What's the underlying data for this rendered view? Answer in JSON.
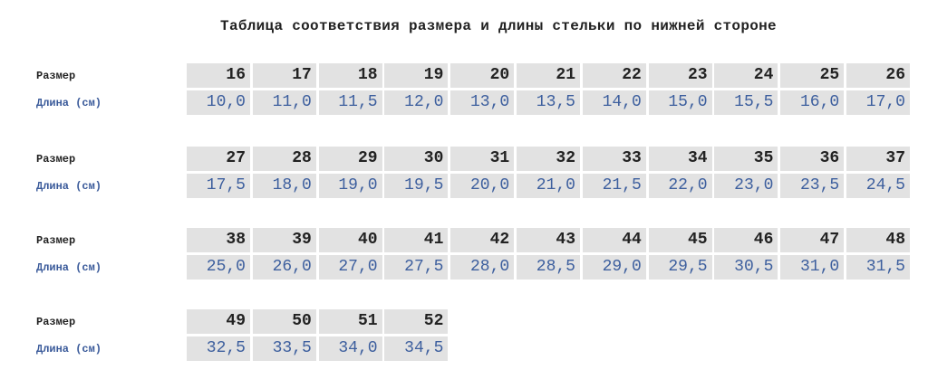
{
  "title": "Таблица соответствия размера и длины стельки по нижней стороне",
  "size_label": "Размер",
  "length_label": "Длина (см)",
  "colors": {
    "cell_bg": "#e2e2e2",
    "length_text": "#3d5f9e",
    "size_text": "#222222"
  },
  "blocks": [
    {
      "sizes": [
        "16",
        "17",
        "18",
        "19",
        "20",
        "21",
        "22",
        "23",
        "24",
        "25",
        "26"
      ],
      "lengths": [
        "10,0",
        "11,0",
        "11,5",
        "12,0",
        "13,0",
        "13,5",
        "14,0",
        "15,0",
        "15,5",
        "16,0",
        "17,0"
      ]
    },
    {
      "sizes": [
        "27",
        "28",
        "29",
        "30",
        "31",
        "32",
        "33",
        "34",
        "35",
        "36",
        "37"
      ],
      "lengths": [
        "17,5",
        "18,0",
        "19,0",
        "19,5",
        "20,0",
        "21,0",
        "21,5",
        "22,0",
        "23,0",
        "23,5",
        "24,5"
      ]
    },
    {
      "sizes": [
        "38",
        "39",
        "40",
        "41",
        "42",
        "43",
        "44",
        "45",
        "46",
        "47",
        "48"
      ],
      "lengths": [
        "25,0",
        "26,0",
        "27,0",
        "27,5",
        "28,0",
        "28,5",
        "29,0",
        "29,5",
        "30,5",
        "31,0",
        "31,5"
      ]
    },
    {
      "sizes": [
        "49",
        "50",
        "51",
        "52"
      ],
      "lengths": [
        "32,5",
        "33,5",
        "34,0",
        "34,5"
      ]
    }
  ]
}
